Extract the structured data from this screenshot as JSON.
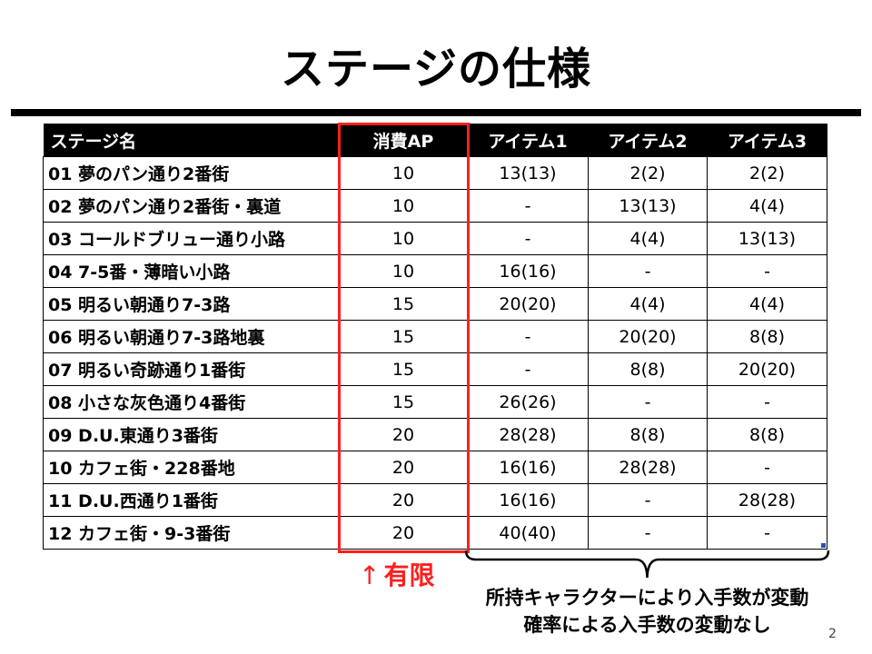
{
  "slide": {
    "title": "ステージの仕様",
    "page_number": "2"
  },
  "table": {
    "headers": [
      "ステージ名",
      "消費AP",
      "アイテム1",
      "アイテム2",
      "アイテム3"
    ],
    "rows": [
      [
        "01 夢のパン通り2番街",
        "10",
        "13(13)",
        "2(2)",
        "2(2)"
      ],
      [
        "02 夢のパン通り2番街・裏道",
        "10",
        "-",
        "13(13)",
        "4(4)"
      ],
      [
        "03 コールドブリュー通り小路",
        "10",
        "-",
        "4(4)",
        "13(13)"
      ],
      [
        "04 7-5番・薄暗い小路",
        "10",
        "16(16)",
        "-",
        "-"
      ],
      [
        "05 明るい朝通り7-3路",
        "15",
        "20(20)",
        "4(4)",
        "4(4)"
      ],
      [
        "06 明るい朝通り7-3路地裏",
        "15",
        "-",
        "20(20)",
        "8(8)"
      ],
      [
        "07 明るい奇跡通り1番街",
        "15",
        "-",
        "8(8)",
        "20(20)"
      ],
      [
        "08 小さな灰色通り4番街",
        "15",
        "26(26)",
        "-",
        "-"
      ],
      [
        "09 D.U.東通り3番街",
        "20",
        "28(28)",
        "8(8)",
        "8(8)"
      ],
      [
        "10 カフェ街・228番地",
        "20",
        "16(16)",
        "28(28)",
        "-"
      ],
      [
        "11 D.U.西通り1番街",
        "20",
        "16(16)",
        "-",
        "28(28)"
      ],
      [
        "12 カフェ街・9-3番街",
        "20",
        "40(40)",
        "-",
        "-"
      ]
    ]
  },
  "annotations": {
    "ap_arrow": "↑",
    "ap_label": "有限",
    "items_note_line1": "所持キャラクターにより入手数が変動",
    "items_note_line2": "確率による入手数の変動なし"
  },
  "colors": {
    "highlight": "#ff1f1f",
    "header_bg": "#000000",
    "header_text": "#ffffff"
  }
}
